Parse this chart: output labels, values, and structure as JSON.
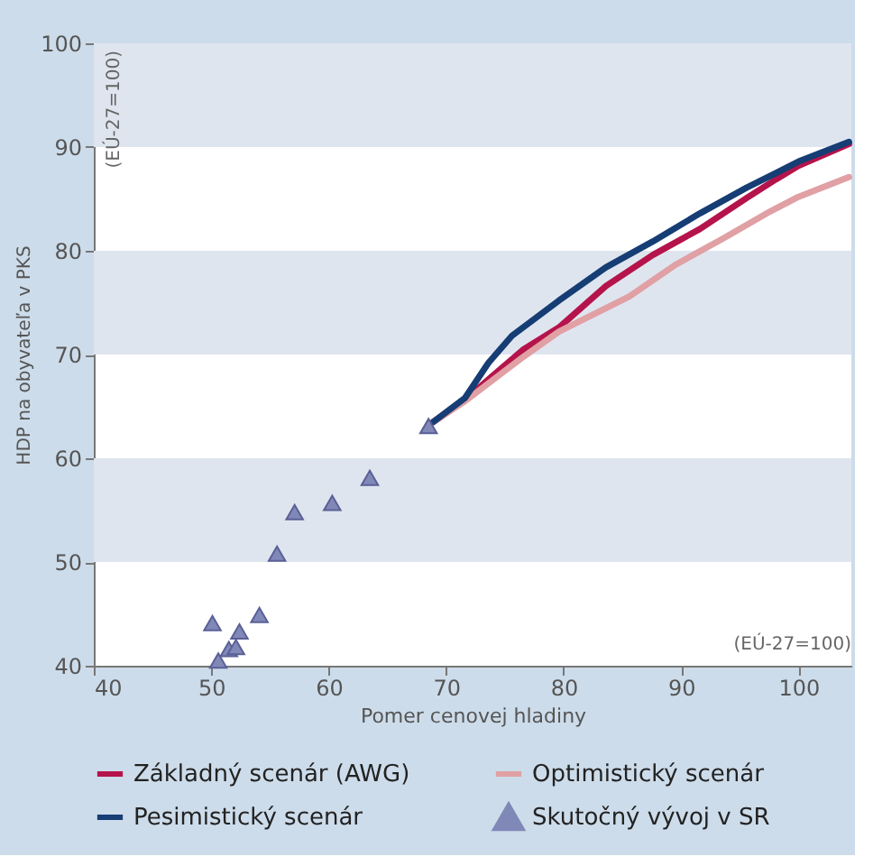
{
  "chart_data": {
    "type": "line",
    "xlabel": "Pomer cenovej hladiny",
    "ylabel": "HDP na obyvateľa v PKS",
    "annotations": [
      "(EÚ-27=100)",
      "(EÚ-27=100)"
    ],
    "xlim": [
      40,
      104.5
    ],
    "xticks": [
      40,
      50,
      60,
      70,
      80,
      90,
      100
    ],
    "ylim": [
      40,
      100
    ],
    "yticks": [
      40,
      50,
      60,
      70,
      80,
      90,
      100
    ],
    "bands": [
      {
        "axis": "y",
        "from": 50,
        "to": 60,
        "color": "#dfe5ef"
      },
      {
        "axis": "y",
        "from": 70,
        "to": 80,
        "color": "#dfe5ef"
      },
      {
        "axis": "y",
        "from": 90,
        "to": 100,
        "color": "#dfe5ef"
      }
    ],
    "legend": "bottom",
    "line_style": "solid",
    "series": [
      {
        "name": "Základný scenár (AWG)",
        "color": "#b5134b",
        "x": [
          68.9,
          71.6,
          73.6,
          76.6,
          79.6,
          83.6,
          87.6,
          91.6,
          95.6,
          98.1,
          100,
          104.3
        ],
        "values": [
          63.5,
          65.6,
          67.6,
          70.5,
          72.6,
          76.6,
          79.6,
          82.1,
          85.1,
          86.9,
          88.2,
          90.3
        ]
      },
      {
        "name": "Optimistický scenár",
        "color": "#e0a0a4",
        "x": [
          68.9,
          71.6,
          76.6,
          79.6,
          85.6,
          89.6,
          93.6,
          97.6,
          100,
          104.3
        ],
        "values": [
          63.5,
          65.5,
          69.8,
          72.2,
          75.6,
          78.7,
          81.2,
          83.8,
          85.2,
          87.1
        ]
      },
      {
        "name": "Pesimistický scenár",
        "color": "#163d74",
        "x": [
          68.9,
          71.6,
          73.6,
          75.6,
          79.6,
          83.6,
          87.6,
          91.6,
          95.6,
          98.1,
          100,
          104.3
        ],
        "values": [
          63.5,
          65.8,
          69.2,
          71.8,
          75.2,
          78.4,
          80.9,
          83.6,
          86.1,
          87.5,
          88.6,
          90.5
        ]
      },
      {
        "name": "Skutočný vývoj v SR",
        "type": "scatter",
        "marker": "triangle",
        "color": "#8088b8",
        "x": [
          50.1,
          50.6,
          51.5,
          52.1,
          52.4,
          54.1,
          55.6,
          57.1,
          60.3,
          63.5,
          68.5
        ],
        "values": [
          44.1,
          40.5,
          41.6,
          41.8,
          43.3,
          44.9,
          50.8,
          54.8,
          55.7,
          58.1,
          63.1
        ]
      }
    ]
  }
}
